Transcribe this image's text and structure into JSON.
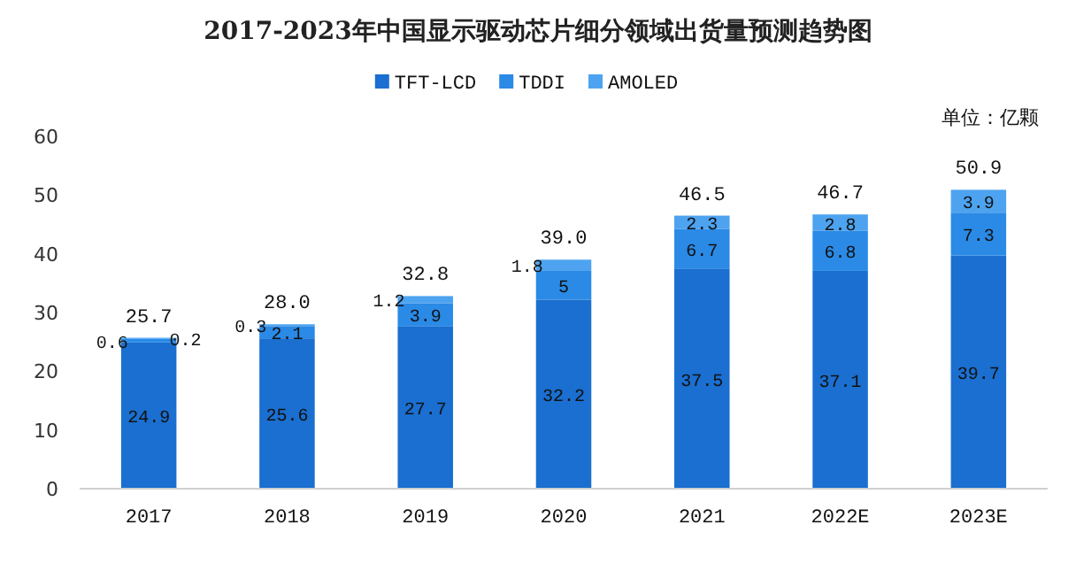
{
  "chart_data": {
    "type": "bar",
    "title": "2017-2023年中国显示驱动芯片细分领域出货量预测趋势图",
    "annotations": [
      "单位：亿颗"
    ],
    "categories": [
      "2017",
      "2018",
      "2019",
      "2020",
      "2021",
      "2022E",
      "2023E"
    ],
    "stacked": true,
    "data_labels": true,
    "legend": "top",
    "grid": false,
    "ylim": [
      0,
      60
    ],
    "yticks": [
      0,
      10,
      20,
      30,
      40,
      50,
      60
    ],
    "totals": [
      "25.7",
      "28.0",
      "32.8",
      "39.0",
      "46.5",
      "46.7",
      "50.9"
    ],
    "series": [
      {
        "name": "TFT-LCD",
        "color": "#1a6fd0",
        "values": [
          24.9,
          25.6,
          27.7,
          32.2,
          37.5,
          37.1,
          39.7
        ]
      },
      {
        "name": "TDDI",
        "color": "#2a8ae6",
        "values": [
          0.6,
          2.1,
          3.9,
          5,
          6.7,
          6.8,
          7.3
        ]
      },
      {
        "name": "AMOLED",
        "color": "#4da3f0",
        "values": [
          0.2,
          0.3,
          1.2,
          1.8,
          2.3,
          2.8,
          3.9
        ]
      }
    ]
  }
}
